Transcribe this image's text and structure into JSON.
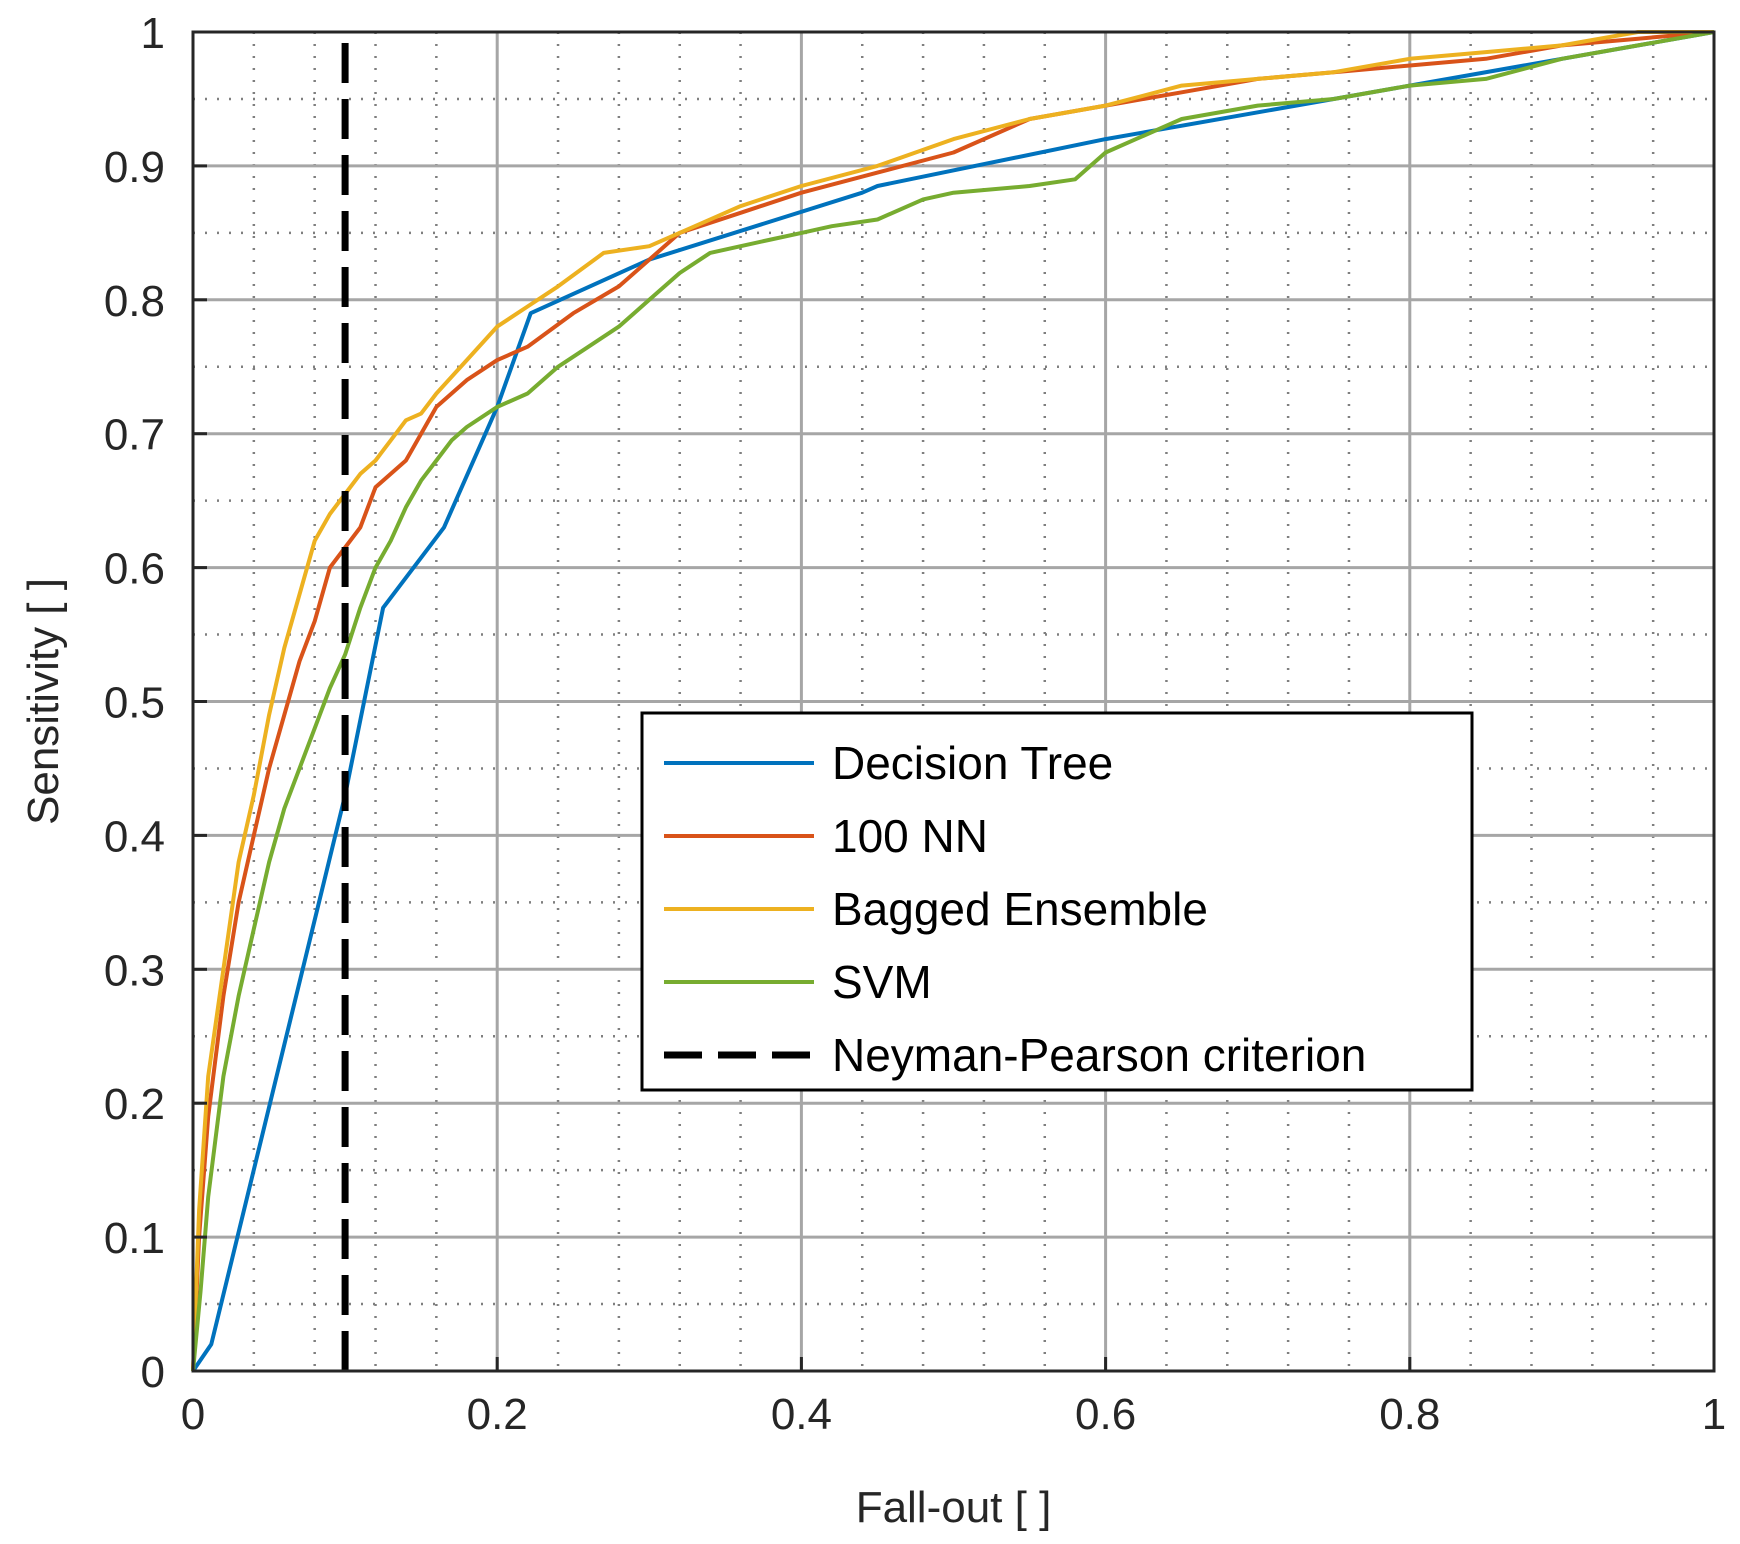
{
  "chart_data": {
    "type": "line",
    "title": "",
    "xlabel": "Fall-out [ ]",
    "ylabel": "Sensitivity [ ]",
    "xlim": [
      0,
      1
    ],
    "ylim": [
      0,
      1
    ],
    "x_ticks": [
      0,
      0.2,
      0.4,
      0.6,
      0.8,
      1
    ],
    "x_tick_labels": [
      "0",
      "0.2",
      "0.4",
      "0.6",
      "0.8",
      "1"
    ],
    "y_ticks": [
      0,
      0.1,
      0.2,
      0.3,
      0.4,
      0.5,
      0.6,
      0.7,
      0.8,
      0.9,
      1
    ],
    "y_tick_labels": [
      "0",
      "0.1",
      "0.2",
      "0.3",
      "0.4",
      "0.5",
      "0.6",
      "0.7",
      "0.8",
      "0.9",
      "1"
    ],
    "x_minor_ticks": [
      0.04,
      0.08,
      0.12,
      0.16,
      0.24,
      0.28,
      0.32,
      0.36,
      0.44,
      0.48,
      0.52,
      0.56,
      0.64,
      0.68,
      0.72,
      0.76,
      0.84,
      0.88,
      0.92,
      0.96
    ],
    "y_minor_ticks": [
      0.05,
      0.15,
      0.25,
      0.35,
      0.45,
      0.55,
      0.65,
      0.75,
      0.85,
      0.95
    ],
    "grid": true,
    "minor_grid": true,
    "legend_position": "center-right",
    "series": [
      {
        "name": "Decision Tree",
        "color": "#0072BD",
        "dash": "solid",
        "x": [
          0,
          0.012,
          0.1,
          0.125,
          0.165,
          0.2,
          0.222,
          0.3,
          0.44,
          0.45,
          0.6,
          0.8,
          1
        ],
        "y": [
          0,
          0.02,
          0.43,
          0.57,
          0.63,
          0.72,
          0.79,
          0.83,
          0.88,
          0.885,
          0.92,
          0.96,
          1
        ]
      },
      {
        "name": "100 NN",
        "color": "#D95319",
        "dash": "solid",
        "x": [
          0,
          0.004,
          0.01,
          0.02,
          0.03,
          0.04,
          0.05,
          0.06,
          0.07,
          0.08,
          0.09,
          0.1,
          0.11,
          0.12,
          0.14,
          0.16,
          0.18,
          0.2,
          0.22,
          0.25,
          0.28,
          0.32,
          0.36,
          0.4,
          0.45,
          0.5,
          0.55,
          0.6,
          0.65,
          0.7,
          0.75,
          0.8,
          0.85,
          0.9,
          0.95,
          1
        ],
        "y": [
          0,
          0.1,
          0.19,
          0.28,
          0.35,
          0.4,
          0.45,
          0.49,
          0.53,
          0.56,
          0.6,
          0.615,
          0.63,
          0.66,
          0.68,
          0.72,
          0.74,
          0.755,
          0.765,
          0.79,
          0.81,
          0.85,
          0.865,
          0.88,
          0.895,
          0.91,
          0.935,
          0.945,
          0.955,
          0.965,
          0.97,
          0.975,
          0.98,
          0.99,
          0.995,
          1
        ]
      },
      {
        "name": "Bagged Ensemble",
        "color": "#EDB120",
        "dash": "solid",
        "x": [
          0,
          0.004,
          0.01,
          0.02,
          0.03,
          0.04,
          0.05,
          0.06,
          0.07,
          0.08,
          0.09,
          0.1,
          0.11,
          0.12,
          0.13,
          0.14,
          0.15,
          0.16,
          0.18,
          0.2,
          0.22,
          0.24,
          0.27,
          0.3,
          0.33,
          0.36,
          0.4,
          0.45,
          0.5,
          0.55,
          0.6,
          0.65,
          0.7,
          0.75,
          0.8,
          0.85,
          0.9,
          0.95,
          1
        ],
        "y": [
          0,
          0.12,
          0.22,
          0.3,
          0.38,
          0.43,
          0.49,
          0.54,
          0.58,
          0.62,
          0.64,
          0.655,
          0.67,
          0.68,
          0.695,
          0.71,
          0.715,
          0.73,
          0.755,
          0.78,
          0.795,
          0.81,
          0.835,
          0.84,
          0.855,
          0.87,
          0.885,
          0.9,
          0.92,
          0.935,
          0.945,
          0.96,
          0.965,
          0.97,
          0.98,
          0.985,
          0.99,
          1,
          1
        ]
      },
      {
        "name": "SVM",
        "color": "#77AC30",
        "dash": "solid",
        "x": [
          0,
          0.005,
          0.01,
          0.02,
          0.03,
          0.04,
          0.05,
          0.06,
          0.07,
          0.08,
          0.09,
          0.1,
          0.11,
          0.12,
          0.13,
          0.14,
          0.15,
          0.16,
          0.17,
          0.18,
          0.2,
          0.22,
          0.24,
          0.26,
          0.28,
          0.3,
          0.32,
          0.34,
          0.36,
          0.38,
          0.4,
          0.42,
          0.45,
          0.48,
          0.5,
          0.55,
          0.58,
          0.6,
          0.62,
          0.65,
          0.7,
          0.75,
          0.8,
          0.85,
          0.9,
          0.95,
          1
        ],
        "y": [
          0,
          0.06,
          0.13,
          0.22,
          0.28,
          0.33,
          0.38,
          0.42,
          0.45,
          0.48,
          0.51,
          0.535,
          0.57,
          0.6,
          0.62,
          0.645,
          0.665,
          0.68,
          0.695,
          0.705,
          0.72,
          0.73,
          0.75,
          0.765,
          0.78,
          0.8,
          0.82,
          0.835,
          0.84,
          0.845,
          0.85,
          0.855,
          0.86,
          0.875,
          0.88,
          0.885,
          0.89,
          0.91,
          0.92,
          0.935,
          0.945,
          0.95,
          0.96,
          0.965,
          0.98,
          0.99,
          1
        ]
      },
      {
        "name": "Neyman-Pearson criterion",
        "color": "#000000",
        "dash": "dashed",
        "x": [
          0.1,
          0.1
        ],
        "y": [
          0,
          1
        ]
      }
    ]
  }
}
